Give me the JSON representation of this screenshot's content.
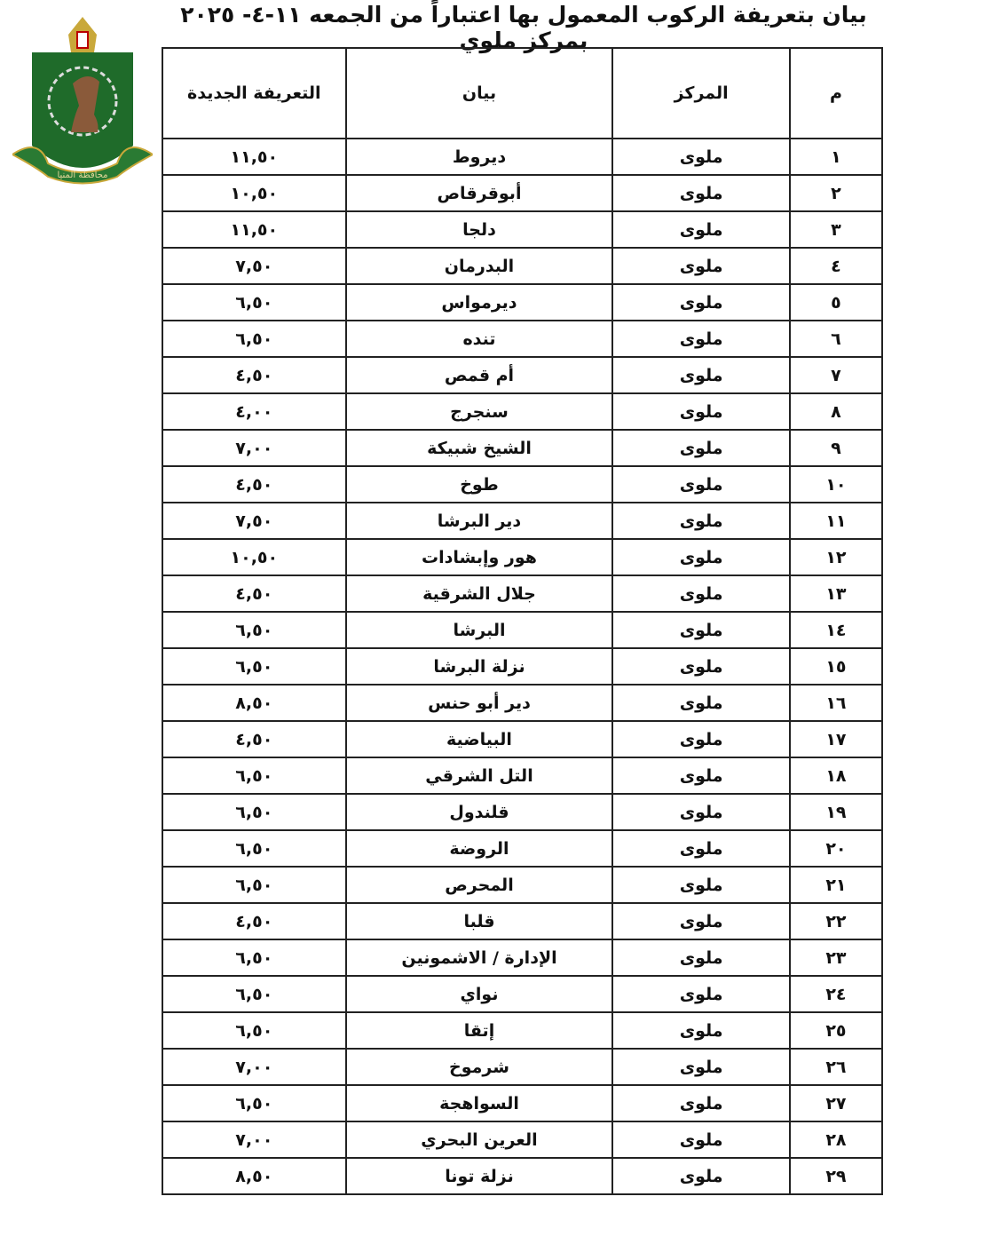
{
  "title": "بيان بتعريفة الركوب المعمول بها اعتباراً من الجمعه ١١-٤- ٢٠٢٥ بمركز ملوي",
  "logo": {
    "text": "محافظة المنيا",
    "colors": {
      "shield": "#1f6b2a",
      "gold": "#c9a83a"
    }
  },
  "table": {
    "headers": {
      "num": "م",
      "markaz": "المركز",
      "statement": "بيان",
      "fare": "التعريفة الجديدة"
    },
    "rows": [
      [
        "١",
        "ملوى",
        "ديروط",
        "١١,٥٠"
      ],
      [
        "٢",
        "ملوى",
        "أبوقرقاص",
        "١٠,٥٠"
      ],
      [
        "٣",
        "ملوى",
        "دلجا",
        "١١,٥٠"
      ],
      [
        "٤",
        "ملوى",
        "البدرمان",
        "٧,٥٠"
      ],
      [
        "٥",
        "ملوى",
        "ديرمواس",
        "٦,٥٠"
      ],
      [
        "٦",
        "ملوى",
        "تنده",
        "٦,٥٠"
      ],
      [
        "٧",
        "ملوى",
        "أم قمص",
        "٤,٥٠"
      ],
      [
        "٨",
        "ملوى",
        "سنجرج",
        "٤,٠٠"
      ],
      [
        "٩",
        "ملوى",
        "الشيخ شبيكة",
        "٧,٠٠"
      ],
      [
        "١٠",
        "ملوى",
        "طوخ",
        "٤,٥٠"
      ],
      [
        "١١",
        "ملوى",
        "دير البرشا",
        "٧,٥٠"
      ],
      [
        "١٢",
        "ملوى",
        "هور وإبشادات",
        "١٠,٥٠"
      ],
      [
        "١٣",
        "ملوى",
        "جلال الشرقية",
        "٤,٥٠"
      ],
      [
        "١٤",
        "ملوى",
        "البرشا",
        "٦,٥٠"
      ],
      [
        "١٥",
        "ملوى",
        "نزلة البرشا",
        "٦,٥٠"
      ],
      [
        "١٦",
        "ملوى",
        "دير أبو حنس",
        "٨,٥٠"
      ],
      [
        "١٧",
        "ملوى",
        "البياضية",
        "٤,٥٠"
      ],
      [
        "١٨",
        "ملوى",
        "التل الشرقي",
        "٦,٥٠"
      ],
      [
        "١٩",
        "ملوى",
        "قلندول",
        "٦,٥٠"
      ],
      [
        "٢٠",
        "ملوى",
        "الروضة",
        "٦,٥٠"
      ],
      [
        "٢١",
        "ملوى",
        "المحرص",
        "٦,٥٠"
      ],
      [
        "٢٢",
        "ملوى",
        "قلبا",
        "٤,٥٠"
      ],
      [
        "٢٣",
        "ملوى",
        "الإدارة / الاشمونين",
        "٦,٥٠"
      ],
      [
        "٢٤",
        "ملوى",
        "نواي",
        "٦,٥٠"
      ],
      [
        "٢٥",
        "ملوى",
        "إتقا",
        "٦,٥٠"
      ],
      [
        "٢٦",
        "ملوى",
        "شرموخ",
        "٧,٠٠"
      ],
      [
        "٢٧",
        "ملوى",
        "السواهجة",
        "٦,٥٠"
      ],
      [
        "٢٨",
        "ملوى",
        "العرين البحري",
        "٧,٠٠"
      ],
      [
        "٢٩",
        "ملوى",
        "نزلة تونا",
        "٨,٥٠"
      ]
    ]
  }
}
